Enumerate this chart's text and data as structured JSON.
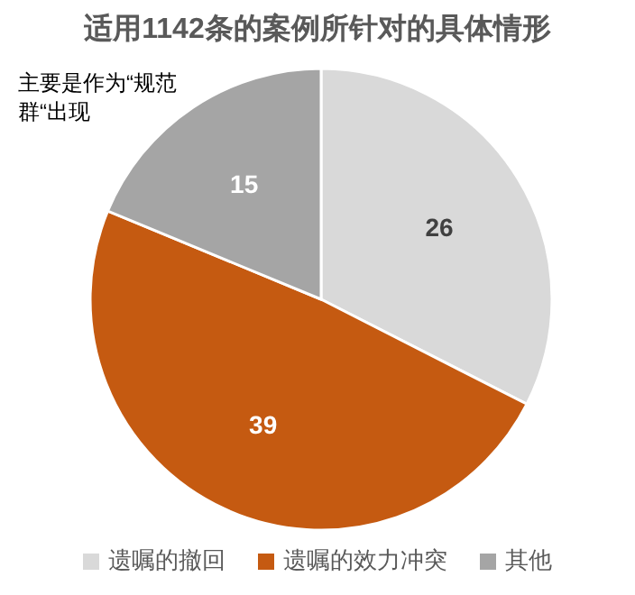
{
  "chart_data": {
    "type": "pie",
    "title": "适用1142条的案例所针对的具体情形",
    "annotations": [
      "主要是作为“规范群“出现"
    ],
    "categories": [
      "遗嘱的撤回",
      "遗嘱的效力冲突",
      "其他"
    ],
    "values": [
      26,
      39,
      15
    ],
    "colors": [
      "#d9d9d9",
      "#c55a11",
      "#a5a5a5"
    ],
    "data_labels": true,
    "legend": "bottom"
  }
}
